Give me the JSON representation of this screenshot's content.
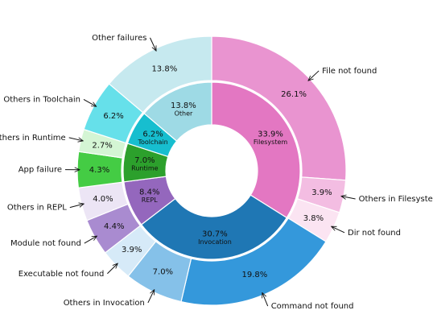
{
  "chart_data": {
    "type": "sunburst",
    "inner": {
      "categories": [
        "Filesystem",
        "Invocation",
        "REPL",
        "Runtime",
        "Toolchain",
        "Other"
      ],
      "values": [
        33.9,
        30.7,
        8.4,
        7.0,
        6.2,
        13.8
      ],
      "value_labels": [
        "33.9%",
        "30.7%",
        "8.4%",
        "7.0%",
        "6.2%",
        "13.8%"
      ],
      "colors": [
        "#e377c2",
        "#1f77b4",
        "#9467bd",
        "#2ca02c",
        "#17becf",
        "#9edae5"
      ]
    },
    "outer": {
      "categories": [
        "File not found",
        "Others in Filesystem",
        "Dir not found",
        "Command not found",
        "Others in Invocation",
        "Executable not found",
        "Module not found",
        "Others in REPL",
        "App failure",
        "Others in Runtime",
        "Others in Toolchain",
        "Other failures"
      ],
      "values": [
        26.1,
        3.9,
        3.8,
        19.8,
        7.0,
        3.9,
        4.4,
        4.0,
        4.3,
        2.7,
        6.2,
        13.8
      ],
      "value_labels": [
        "26.1%",
        "3.9%",
        "3.8%",
        "19.8%",
        "7.0%",
        "3.9%",
        "4.4%",
        "4.0%",
        "4.3%",
        "2.7%",
        "6.2%",
        "13.8%"
      ],
      "colors": [
        "#e994d0",
        "#f3bde2",
        "#fbe4f2",
        "#3498db",
        "#85c1e9",
        "#d6eaf8",
        "#a98bd0",
        "#ece5f5",
        "#44cc44",
        "#d4f5d4",
        "#66e0ea",
        "#c6e9ef"
      ]
    }
  }
}
